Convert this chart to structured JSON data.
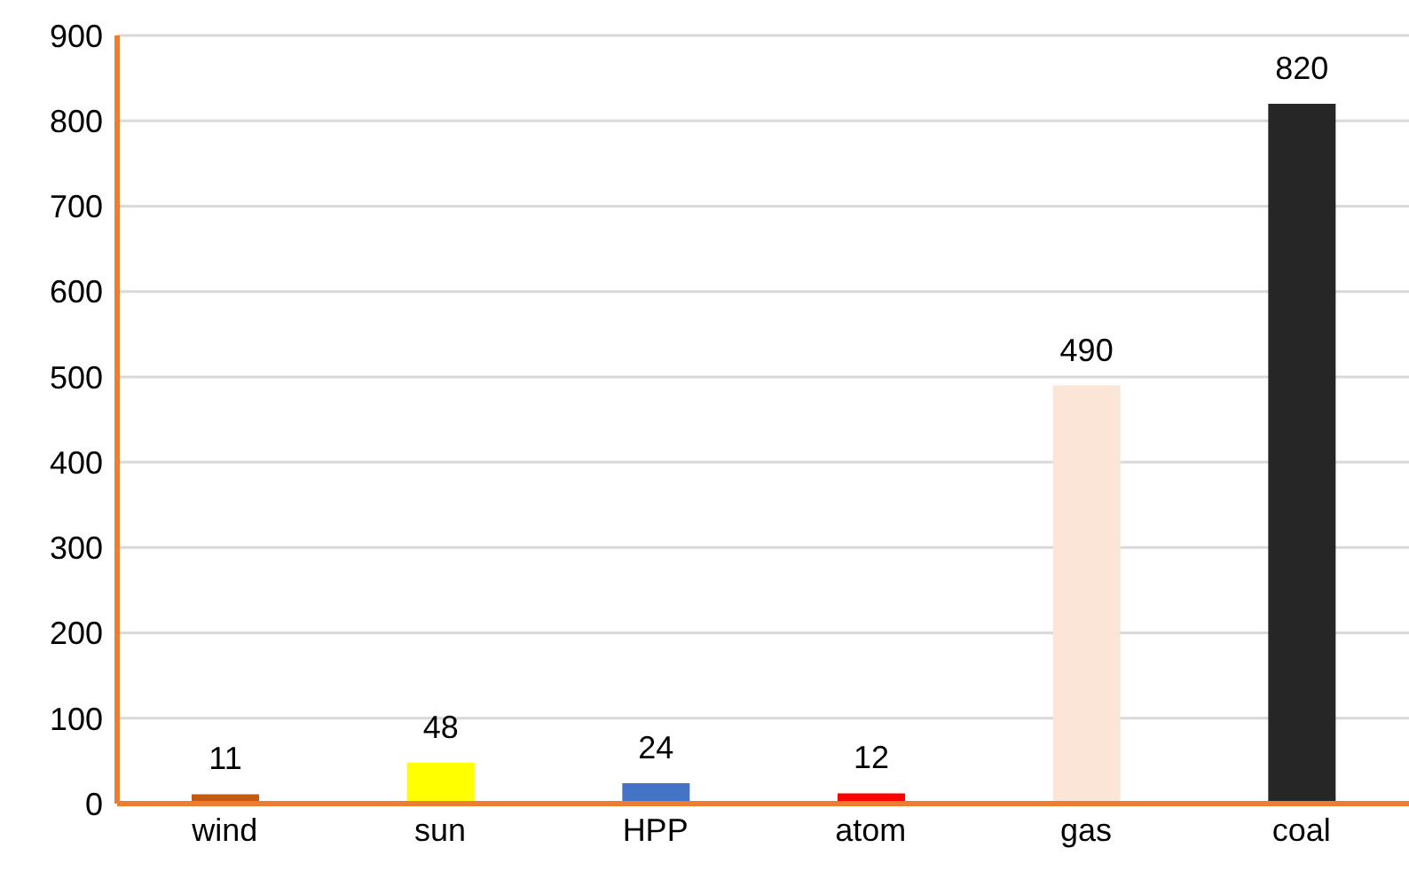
{
  "chart_data": {
    "type": "bar",
    "categories": [
      "wind",
      "sun",
      "HPP",
      "atom",
      "gas",
      "coal"
    ],
    "values": [
      11,
      48,
      24,
      12,
      490,
      820
    ],
    "colors": [
      "#c55a11",
      "#ffff00",
      "#4472c4",
      "#ff0000",
      "#fbe5d6",
      "#262626"
    ],
    "ylim": [
      0,
      900
    ],
    "yticks": [
      0,
      100,
      200,
      300,
      400,
      500,
      600,
      700,
      800,
      900
    ],
    "grid": "y",
    "data_labels": true
  }
}
